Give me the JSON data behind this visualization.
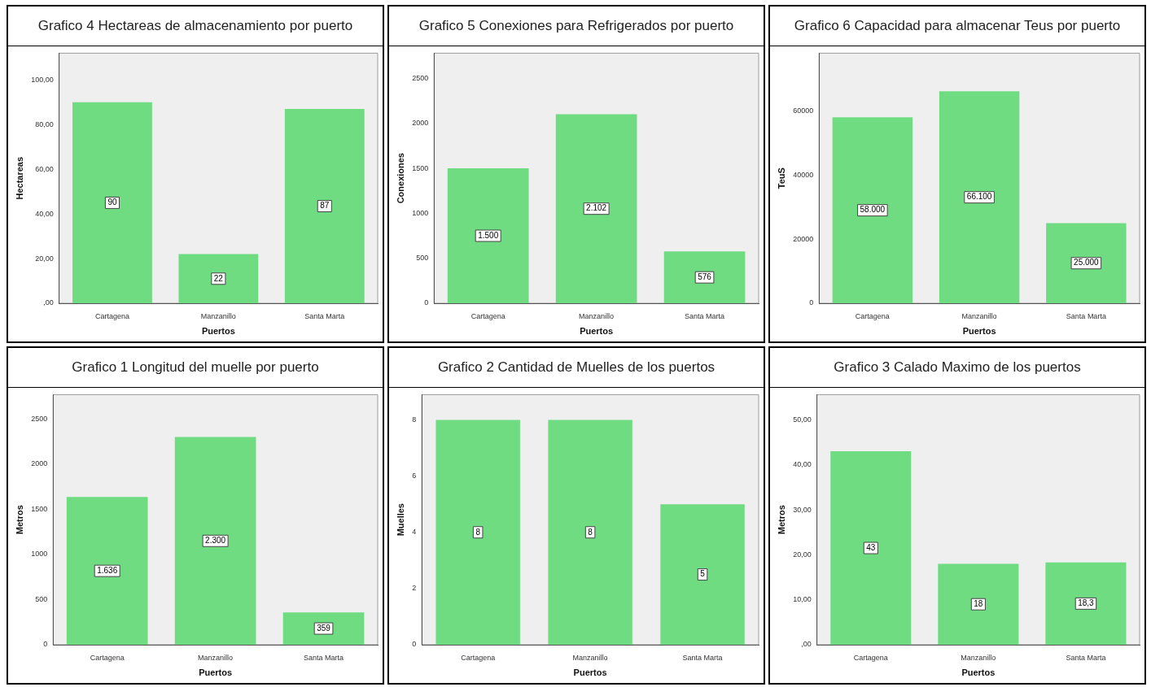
{
  "chart_data": [
    {
      "type": "bar",
      "title": "Grafico 4 Hectareas de almacenamiento por puerto",
      "xlabel": "Puertos",
      "ylabel": "Hectareas",
      "categories": [
        "Cartagena",
        "Manzanillo",
        "Santa Marta"
      ],
      "values": [
        90,
        22,
        87
      ],
      "value_labels": [
        "90",
        "22",
        "87"
      ],
      "color": "#6fdc82",
      "ylim": [
        0,
        112
      ],
      "yticks": [
        {
          "value": 0,
          "label": ",00"
        },
        {
          "value": 20,
          "label": "20,00"
        },
        {
          "value": 40,
          "label": "40,00"
        },
        {
          "value": 60,
          "label": "60,00"
        },
        {
          "value": 80,
          "label": "80,00"
        },
        {
          "value": 100,
          "label": "100,00"
        }
      ]
    },
    {
      "type": "bar",
      "title": "Grafico 5 Conexiones para Refrigerados por puerto",
      "xlabel": "Puertos",
      "ylabel": "Conexiones",
      "categories": [
        "Cartagena",
        "Manzanillo",
        "Santa Marta"
      ],
      "values": [
        1500,
        2102,
        576
      ],
      "value_labels": [
        "1.500",
        "2.102",
        "576"
      ],
      "color": "#6fdc82",
      "ylim": [
        0,
        2780
      ],
      "yticks": [
        0,
        500,
        1000,
        1500,
        2000,
        2500
      ]
    },
    {
      "type": "bar",
      "title": "Grafico 6 Capacidad para almacenar Teus por puerto",
      "xlabel": "Puertos",
      "ylabel": "TeuS",
      "categories": [
        "Cartagena",
        "Manzanillo",
        "Santa Marta"
      ],
      "values": [
        58000,
        66100,
        25000
      ],
      "value_labels": [
        "58.000",
        "66.100",
        "25.000"
      ],
      "color": "#6fdc82",
      "ylim": [
        0,
        78000
      ],
      "yticks": [
        0,
        20000,
        40000,
        60000
      ]
    },
    {
      "type": "bar",
      "title": "Grafico 1 Longitud del muelle por puerto",
      "xlabel": "Puertos",
      "ylabel": "Metros",
      "categories": [
        "Cartagena",
        "Manzanillo",
        "Santa Marta"
      ],
      "values": [
        1636,
        2300,
        359
      ],
      "value_labels": [
        "1.636",
        "2.300",
        "359"
      ],
      "color": "#6fdc82",
      "ylim": [
        0,
        2770
      ],
      "yticks": [
        0,
        500,
        1000,
        1500,
        2000,
        2500
      ]
    },
    {
      "type": "bar",
      "title": "Grafico 2 Cantidad de Muelles de los puertos",
      "xlabel": "Puertos",
      "ylabel": "Muelles",
      "categories": [
        "Cartagena",
        "Manzanillo",
        "Santa Marta"
      ],
      "values": [
        8,
        8,
        5
      ],
      "value_labels": [
        "8",
        "8",
        "5"
      ],
      "color": "#6fdc82",
      "ylim": [
        0,
        8.9
      ],
      "yticks": [
        0,
        2,
        4,
        6,
        8
      ]
    },
    {
      "type": "bar",
      "title": "Grafico 3 Calado Maximo de los puertos",
      "xlabel": "Puertos",
      "ylabel": "Metros",
      "categories": [
        "Cartagena",
        "Manzanillo",
        "Santa Marta"
      ],
      "values": [
        43,
        18,
        18.3
      ],
      "value_labels": [
        "43",
        "18",
        "18,3"
      ],
      "color": "#6fdc82",
      "ylim": [
        0,
        55.6
      ],
      "yticks": [
        {
          "value": 0,
          "label": ",00"
        },
        {
          "value": 10,
          "label": "10,00"
        },
        {
          "value": 20,
          "label": "20,00"
        },
        {
          "value": 30,
          "label": "30,00"
        },
        {
          "value": 40,
          "label": "40,00"
        },
        {
          "value": 50,
          "label": "50,00"
        }
      ]
    }
  ]
}
